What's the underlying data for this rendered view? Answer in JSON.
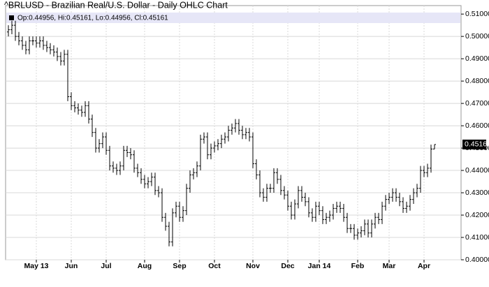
{
  "chart_data": {
    "type": "ohlc",
    "title": "^BRLUSD - Brazilian Real/U.S. Dollar - Daily OHLC Chart",
    "legend_text": "Op:0.44956, Hi:0.45161, Lo:0.44956, Cl:0.45161",
    "last_price": {
      "value": 0.45161,
      "label": "0.45161"
    },
    "color": "#000000",
    "grid": true,
    "ylim": [
      0.4,
      0.5138
    ],
    "yticks": [
      {
        "value": 0.4,
        "label": "0.40000"
      },
      {
        "value": 0.41,
        "label": "0.41000"
      },
      {
        "value": 0.42,
        "label": "0.42000"
      },
      {
        "value": 0.43,
        "label": "0.43000"
      },
      {
        "value": 0.44,
        "label": "0.44000"
      },
      {
        "value": 0.45,
        "label": "0.45000"
      },
      {
        "value": 0.46,
        "label": "0.46000"
      },
      {
        "value": 0.47,
        "label": "0.47000"
      },
      {
        "value": 0.48,
        "label": "0.48000"
      },
      {
        "value": 0.49,
        "label": "0.49000"
      },
      {
        "value": 0.5,
        "label": "0.50000"
      },
      {
        "value": 0.51,
        "label": "0.51000"
      }
    ],
    "categories": [
      null,
      null,
      null,
      null,
      null,
      null,
      null,
      null,
      "May 13",
      null,
      null,
      null,
      null,
      null,
      null,
      null,
      null,
      null,
      "Jun",
      null,
      null,
      null,
      null,
      null,
      null,
      null,
      null,
      null,
      "Jul",
      null,
      null,
      null,
      null,
      null,
      null,
      null,
      null,
      null,
      null,
      "Aug",
      null,
      null,
      null,
      null,
      null,
      null,
      null,
      null,
      null,
      "Sep",
      null,
      null,
      null,
      null,
      null,
      null,
      null,
      null,
      null,
      "Oct",
      null,
      null,
      null,
      null,
      null,
      null,
      null,
      null,
      null,
      null,
      "Nov",
      null,
      null,
      null,
      null,
      null,
      null,
      null,
      null,
      null,
      "Dec",
      null,
      null,
      null,
      null,
      null,
      null,
      null,
      null,
      "Jan 14",
      null,
      null,
      null,
      null,
      null,
      null,
      null,
      null,
      null,
      null,
      "Feb",
      null,
      null,
      null,
      null,
      null,
      null,
      null,
      null,
      "Mar",
      null,
      null,
      null,
      null,
      null,
      null,
      null,
      null,
      null,
      "Apr",
      null,
      null,
      null
    ],
    "open": [
      0.502,
      0.503,
      0.505,
      0.5,
      0.498,
      0.496,
      0.494,
      0.498,
      0.498,
      0.497,
      0.498,
      0.496,
      0.495,
      0.494,
      0.493,
      0.491,
      0.489,
      0.492,
      0.473,
      0.469,
      0.468,
      0.467,
      0.466,
      0.469,
      0.463,
      0.457,
      0.45,
      0.452,
      0.455,
      0.449,
      0.442,
      0.441,
      0.44,
      0.442,
      0.449,
      0.448,
      0.447,
      0.441,
      0.439,
      0.436,
      0.434,
      0.435,
      0.437,
      0.431,
      0.43,
      0.419,
      0.415,
      0.408,
      0.421,
      0.424,
      0.419,
      0.422,
      0.432,
      0.438,
      0.439,
      0.442,
      0.454,
      0.455,
      0.447,
      0.45,
      0.451,
      0.452,
      0.454,
      0.455,
      0.458,
      0.459,
      0.461,
      0.458,
      0.456,
      0.457,
      0.455,
      0.443,
      0.438,
      0.43,
      0.428,
      0.432,
      0.432,
      0.439,
      0.436,
      0.431,
      0.429,
      0.424,
      0.42,
      0.425,
      0.431,
      0.428,
      0.426,
      0.421,
      0.419,
      0.424,
      0.422,
      0.418,
      0.419,
      0.42,
      0.423,
      0.424,
      0.423,
      0.419,
      0.414,
      0.414,
      0.411,
      0.412,
      0.413,
      0.416,
      0.412,
      0.416,
      0.419,
      0.418,
      0.424,
      0.427,
      0.428,
      0.43,
      0.428,
      0.426,
      0.423,
      0.424,
      0.427,
      0.43,
      0.432,
      0.44,
      0.439,
      0.441,
      0.44956
    ],
    "high": [
      0.505,
      0.507,
      0.507,
      0.502,
      0.5,
      0.498,
      0.5,
      0.5,
      0.5,
      0.5,
      0.5,
      0.498,
      0.497,
      0.496,
      0.495,
      0.493,
      0.494,
      0.494,
      0.475,
      0.471,
      0.47,
      0.469,
      0.471,
      0.471,
      0.465,
      0.459,
      0.454,
      0.457,
      0.457,
      0.451,
      0.444,
      0.443,
      0.444,
      0.451,
      0.451,
      0.45,
      0.449,
      0.443,
      0.441,
      0.438,
      0.437,
      0.439,
      0.439,
      0.433,
      0.432,
      0.421,
      0.417,
      0.423,
      0.426,
      0.426,
      0.424,
      0.434,
      0.44,
      0.441,
      0.444,
      0.456,
      0.457,
      0.457,
      0.452,
      0.453,
      0.454,
      0.456,
      0.457,
      0.46,
      0.461,
      0.463,
      0.463,
      0.46,
      0.459,
      0.459,
      0.457,
      0.445,
      0.44,
      0.432,
      0.434,
      0.434,
      0.441,
      0.441,
      0.438,
      0.433,
      0.431,
      0.426,
      0.427,
      0.433,
      0.433,
      0.43,
      0.428,
      0.423,
      0.426,
      0.426,
      0.424,
      0.421,
      0.422,
      0.425,
      0.426,
      0.426,
      0.425,
      0.421,
      0.416,
      0.416,
      0.414,
      0.415,
      0.418,
      0.418,
      0.418,
      0.421,
      0.421,
      0.426,
      0.429,
      0.43,
      0.432,
      0.432,
      0.43,
      0.428,
      0.426,
      0.429,
      0.432,
      0.434,
      0.442,
      0.442,
      0.443,
      0.45156,
      0.45161
    ],
    "low": [
      0.5,
      0.501,
      0.498,
      0.496,
      0.494,
      0.492,
      0.492,
      0.496,
      0.495,
      0.495,
      0.494,
      0.493,
      0.492,
      0.491,
      0.489,
      0.487,
      0.487,
      0.471,
      0.467,
      0.466,
      0.465,
      0.464,
      0.464,
      0.461,
      0.455,
      0.448,
      0.448,
      0.45,
      0.447,
      0.44,
      0.439,
      0.438,
      0.438,
      0.44,
      0.446,
      0.445,
      0.439,
      0.437,
      0.434,
      0.432,
      0.432,
      0.433,
      0.429,
      0.428,
      0.417,
      0.413,
      0.406,
      0.406,
      0.419,
      0.417,
      0.417,
      0.42,
      0.43,
      0.436,
      0.437,
      0.44,
      0.452,
      0.445,
      0.445,
      0.448,
      0.449,
      0.45,
      0.452,
      0.453,
      0.456,
      0.457,
      0.456,
      0.454,
      0.454,
      0.453,
      0.441,
      0.436,
      0.428,
      0.426,
      0.426,
      0.43,
      0.43,
      0.434,
      0.429,
      0.427,
      0.422,
      0.418,
      0.418,
      0.423,
      0.426,
      0.424,
      0.419,
      0.417,
      0.417,
      0.42,
      0.416,
      0.416,
      0.417,
      0.418,
      0.421,
      0.421,
      0.417,
      0.412,
      0.412,
      0.409,
      0.409,
      0.41,
      0.411,
      0.41,
      0.41,
      0.414,
      0.416,
      0.416,
      0.422,
      0.425,
      0.426,
      0.426,
      0.424,
      0.421,
      0.421,
      0.422,
      0.425,
      0.428,
      0.43,
      0.437,
      0.437,
      0.439,
      0.44956
    ],
    "close": [
      0.503,
      0.505,
      0.5,
      0.498,
      0.496,
      0.494,
      0.498,
      0.498,
      0.497,
      0.498,
      0.496,
      0.495,
      0.494,
      0.493,
      0.491,
      0.489,
      0.492,
      0.473,
      0.469,
      0.468,
      0.467,
      0.466,
      0.469,
      0.463,
      0.457,
      0.45,
      0.452,
      0.455,
      0.449,
      0.442,
      0.441,
      0.44,
      0.442,
      0.449,
      0.448,
      0.447,
      0.441,
      0.439,
      0.436,
      0.434,
      0.435,
      0.437,
      0.431,
      0.43,
      0.419,
      0.415,
      0.408,
      0.421,
      0.424,
      0.419,
      0.422,
      0.432,
      0.438,
      0.439,
      0.442,
      0.454,
      0.455,
      0.447,
      0.45,
      0.451,
      0.452,
      0.454,
      0.455,
      0.458,
      0.459,
      0.461,
      0.458,
      0.456,
      0.457,
      0.455,
      0.443,
      0.438,
      0.43,
      0.428,
      0.432,
      0.432,
      0.439,
      0.436,
      0.431,
      0.429,
      0.424,
      0.42,
      0.425,
      0.431,
      0.428,
      0.426,
      0.421,
      0.419,
      0.424,
      0.422,
      0.418,
      0.419,
      0.42,
      0.423,
      0.424,
      0.423,
      0.419,
      0.414,
      0.414,
      0.411,
      0.412,
      0.413,
      0.416,
      0.412,
      0.416,
      0.419,
      0.418,
      0.424,
      0.427,
      0.428,
      0.43,
      0.428,
      0.426,
      0.423,
      0.424,
      0.427,
      0.43,
      0.432,
      0.44,
      0.439,
      0.441,
      0.44956,
      0.45161
    ]
  }
}
